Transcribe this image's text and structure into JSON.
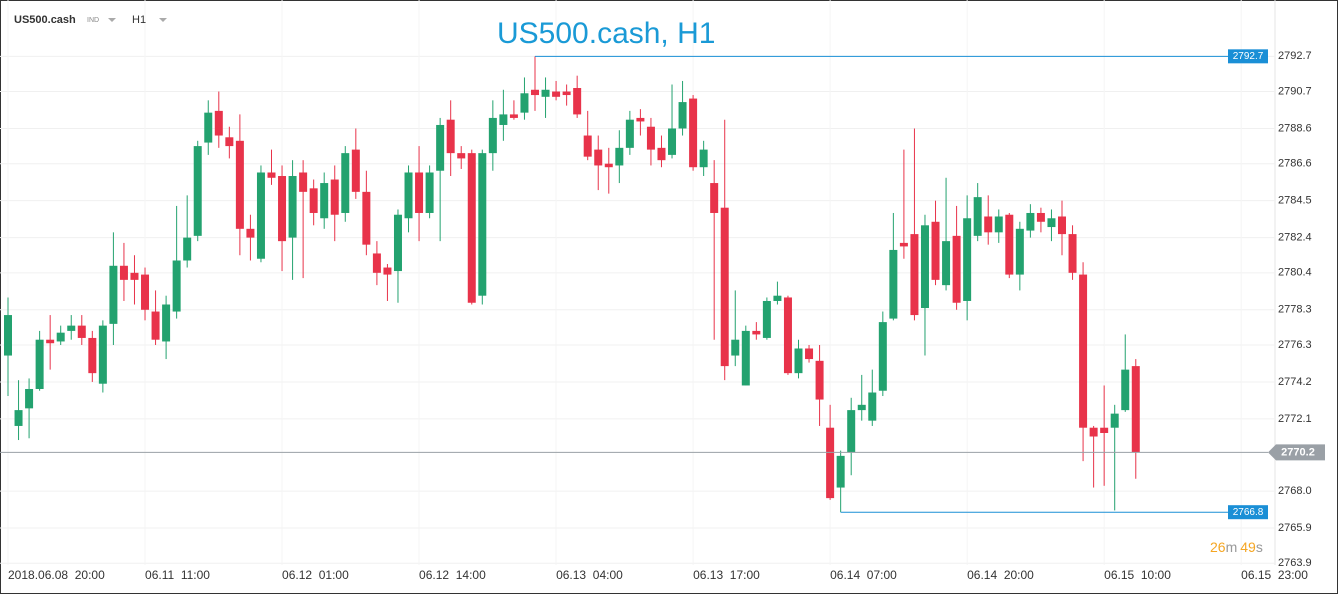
{
  "toolbar": {
    "symbol": "US500.cash",
    "category": "IND",
    "timeframe": "H1"
  },
  "countdown": {
    "minutes": 26,
    "minutes_unit": "m",
    "seconds": 49,
    "seconds_unit": "s"
  },
  "chart_data": {
    "type": "candlestick",
    "title": "US500.cash, H1",
    "up_color": "#23a26f",
    "down_color": "#e8334a",
    "marker_color": "#1a8fd6",
    "last_color": "#9aa0a6",
    "ylim": [
      2763.8,
      2795.9
    ],
    "yticks": [
      2792.7,
      2790.7,
      2788.6,
      2786.6,
      2784.5,
      2782.4,
      2780.4,
      2778.3,
      2776.3,
      2774.2,
      2772.1,
      {
        "value": 2768,
        "label": "2768.0"
      },
      2765.9,
      2763.9
    ],
    "xtick_labels": [
      "2018.06.08  20:00",
      "06.11  11:00",
      "06.12  01:00",
      "06.12  14:00",
      "06.13  04:00",
      "06.13  17:00",
      "06.14  07:00",
      "06.14  20:00",
      "06.15  10:00",
      "06.15  23:00"
    ],
    "grid": true,
    "open": [
      2775.7,
      2771.7,
      2772.7,
      2773.8,
      2776.6,
      2776.5,
      2777.1,
      2777.4,
      2776.7,
      2774.1,
      2777.5,
      2780.8,
      2780.4,
      2780.3,
      2778.2,
      2776.5,
      2778.2,
      2781.1,
      2782.5,
      2787.8,
      2789.6,
      2788.1,
      2787.9,
      2782.9,
      2781.2,
      2786.1,
      2785.9,
      2782.4,
      2786.1,
      2785.2,
      2783.5,
      2785.7,
      2783.8,
      2787.4,
      2785.0,
      2781.5,
      2780.7,
      2780.5,
      2783.5,
      2786.1,
      2783.8,
      2786.2,
      2789.1,
      2787.2,
      2787.2,
      2779.1,
      2787.2,
      2788.8,
      2789.4,
      2789.5,
      2790.8,
      2790.4,
      2790.7,
      2790.7,
      2790.9,
      2788.2,
      2787.4,
      2786.6,
      2786.5,
      2787.5,
      2789.2,
      2788.7,
      2787.5,
      2787.1,
      2788.6,
      2790.3,
      2786.4,
      2785.5,
      2784.1,
      2775.7,
      2774.0,
      2777.1,
      2776.7,
      2778.8,
      2779.0,
      2774.7,
      2776.1,
      2775.4,
      2771.6,
      2768.2,
      2770.2,
      2772.6,
      2772.0,
      2773.7,
      2777.8,
      2782.1,
      2782.6,
      2778.4,
      2783.3,
      2779.7,
      2782.5,
      2778.8,
      2782.5,
      2783.6,
      2782.7,
      2783.7,
      2780.3,
      2782.8,
      2783.8,
      2783.0,
      2783.6,
      2782.6,
      2780.3,
      2771.6,
      2771.6,
      2771.6,
      2772.6,
      2775.1
    ],
    "high": [
      2779.0,
      2774.3,
      2774.4,
      2777.1,
      2778.0,
      2777.4,
      2778.0,
      2778.0,
      2777.1,
      2777.7,
      2782.7,
      2782.1,
      2781.4,
      2780.7,
      2779.4,
      2779.1,
      2784.2,
      2784.8,
      2787.9,
      2790.2,
      2790.7,
      2788.7,
      2789.4,
      2783.7,
      2786.5,
      2787.4,
      2786.5,
      2786.8,
      2786.8,
      2785.7,
      2786.1,
      2786.5,
      2787.6,
      2788.6,
      2786.2,
      2782.2,
      2780.9,
      2784.0,
      2786.5,
      2787.6,
      2786.5,
      2789.2,
      2790.2,
      2787.6,
      2787.4,
      2787.4,
      2790.2,
      2790.8,
      2790.2,
      2791.5,
      2792.7,
      2791.5,
      2791.3,
      2791.1,
      2791.6,
      2789.6,
      2788.2,
      2787.5,
      2788.5,
      2789.6,
      2789.7,
      2789.2,
      2788.2,
      2791.1,
      2791.3,
      2790.5,
      2787.9,
      2786.8,
      2789.1,
      2779.4,
      2777.4,
      2777.6,
      2779.0,
      2779.9,
      2779.1,
      2776.6,
      2776.3,
      2776.3,
      2772.9,
      2770.3,
      2773.3,
      2774.6,
      2774.9,
      2778.2,
      2783.8,
      2787.4,
      2788.6,
      2783.7,
      2784.5,
      2785.8,
      2784.2,
      2784.8,
      2785.5,
      2784.8,
      2784.0,
      2783.8,
      2783.3,
      2784.3,
      2784.1,
      2784.0,
      2784.5,
      2783.1,
      2781.0,
      2771.7,
      2774.0,
      2772.9,
      2776.9,
      2775.5
    ],
    "low": [
      2773.4,
      2770.9,
      2771.0,
      2773.7,
      2774.9,
      2776.3,
      2776.6,
      2776.3,
      2774.2,
      2773.6,
      2776.3,
      2778.8,
      2778.6,
      2777.7,
      2776.3,
      2775.5,
      2777.8,
      2780.7,
      2782.2,
      2787.1,
      2787.5,
      2786.9,
      2781.4,
      2781.1,
      2781.0,
      2785.4,
      2780.5,
      2780.0,
      2780.1,
      2783.1,
      2782.9,
      2782.2,
      2783.3,
      2784.6,
      2781.4,
      2779.7,
      2778.8,
      2778.7,
      2782.7,
      2782.2,
      2783.5,
      2782.2,
      2785.9,
      2786.3,
      2778.6,
      2778.6,
      2786.2,
      2787.9,
      2789.1,
      2789.1,
      2789.6,
      2789.2,
      2790.2,
      2789.9,
      2789.2,
      2786.8,
      2785.1,
      2784.9,
      2785.5,
      2787.1,
      2788.2,
      2786.5,
      2786.4,
      2786.9,
      2788.2,
      2786.2,
      2785.9,
      2776.6,
      2774.3,
      2775.1,
      2774.0,
      2776.6,
      2776.6,
      2778.6,
      2774.6,
      2774.4,
      2775.3,
      2771.7,
      2767.5,
      2766.8,
      2768.9,
      2772.0,
      2771.7,
      2773.4,
      2777.7,
      2781.2,
      2777.7,
      2775.7,
      2779.7,
      2779.4,
      2778.3,
      2777.7,
      2782.2,
      2782.0,
      2782.1,
      2780.1,
      2779.4,
      2782.4,
      2782.7,
      2782.2,
      2781.4,
      2780.0,
      2769.7,
      2768.2,
      2768.3,
      2766.9,
      2772.5,
      2768.7
    ],
    "close": [
      2778.0,
      2772.6,
      2773.8,
      2776.6,
      2776.4,
      2777.0,
      2777.4,
      2776.7,
      2774.7,
      2777.4,
      2780.8,
      2780.0,
      2780.0,
      2778.3,
      2776.6,
      2778.6,
      2781.1,
      2782.4,
      2787.6,
      2789.5,
      2788.2,
      2787.6,
      2782.9,
      2782.4,
      2786.1,
      2785.8,
      2782.2,
      2785.9,
      2785.0,
      2783.8,
      2785.5,
      2783.7,
      2787.2,
      2785.0,
      2782.0,
      2780.4,
      2780.3,
      2783.7,
      2786.1,
      2783.8,
      2786.1,
      2788.8,
      2787.2,
      2786.9,
      2778.7,
      2787.2,
      2789.2,
      2789.4,
      2789.2,
      2790.6,
      2790.5,
      2790.8,
      2790.4,
      2790.5,
      2789.4,
      2787.0,
      2786.5,
      2786.4,
      2787.5,
      2789.1,
      2789.0,
      2787.4,
      2786.8,
      2788.6,
      2790.1,
      2786.4,
      2787.4,
      2783.8,
      2775.1,
      2776.6,
      2777.1,
      2776.9,
      2778.8,
      2779.1,
      2774.7,
      2776.1,
      2775.5,
      2773.2,
      2767.6,
      2770.0,
      2772.6,
      2772.9,
      2773.6,
      2777.6,
      2781.7,
      2781.9,
      2778.0,
      2783.1,
      2780.0,
      2782.2,
      2778.7,
      2783.5,
      2784.7,
      2782.7,
      2783.6,
      2780.3,
      2782.9,
      2783.8,
      2783.3,
      2783.5,
      2782.6,
      2780.4,
      2771.6,
      2771.1,
      2771.3,
      2772.4,
      2774.9,
      2770.2
    ]
  }
}
